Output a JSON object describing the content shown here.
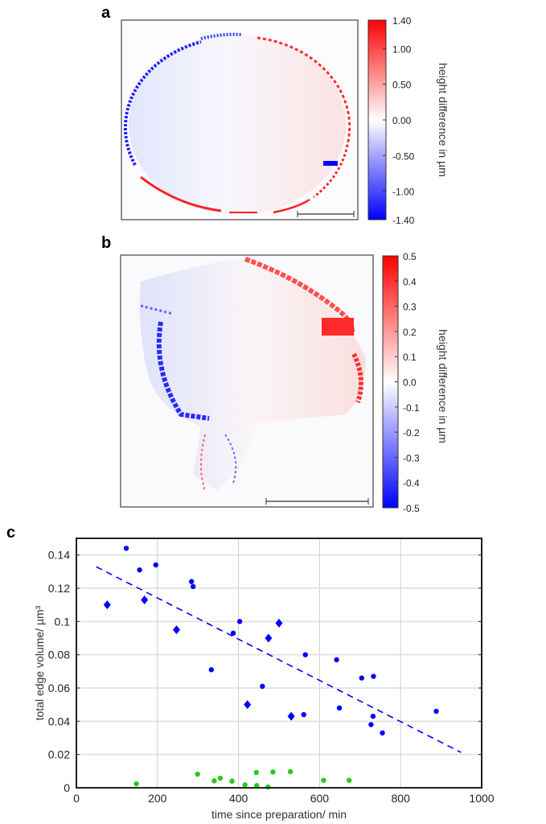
{
  "panels": {
    "a": {
      "letter": "a",
      "colorbar_label": "height difference in µm",
      "colorbar_ticks": [
        "1.40",
        "1.00",
        "0.50",
        "0.00",
        "-0.50",
        "-1.00",
        "-1.40"
      ],
      "colorbar_range": [
        -1.4,
        1.4
      ]
    },
    "b": {
      "letter": "b",
      "colorbar_label": "height difference in µm",
      "colorbar_ticks": [
        "0.5",
        "0.4",
        "0.3",
        "0.2",
        "0.1",
        "0.0",
        "-0.1",
        "-0.2",
        "-0.3",
        "-0.4",
        "-0.5"
      ],
      "colorbar_range": [
        -0.5,
        0.5
      ]
    },
    "c": {
      "letter": "c"
    }
  },
  "colors": {
    "blue": "#0000ff",
    "green": "#22cc22",
    "red": "#ff0000"
  },
  "chart_data": {
    "type": "scatter",
    "xlabel": "time since preparation/ min",
    "ylabel": "total edge volume/ µm³",
    "xlim": [
      0,
      1000
    ],
    "ylim": [
      0,
      0.15
    ],
    "xticks": [
      0,
      200,
      400,
      600,
      800,
      1000
    ],
    "yticks": [
      0,
      0.02,
      0.04,
      0.06,
      0.08,
      0.1,
      0.12,
      0.14
    ],
    "ytick_labels": [
      "0",
      "0.02",
      "0.04",
      "0.06",
      "0.08",
      "0.1",
      "0.12",
      "0.14"
    ],
    "grid": true,
    "series": [
      {
        "name": "blue circles",
        "marker": "circle",
        "color": "#0000ff",
        "points": [
          [
            123,
            0.144
          ],
          [
            156,
            0.131
          ],
          [
            196,
            0.134
          ],
          [
            284,
            0.124
          ],
          [
            288,
            0.121
          ],
          [
            403,
            0.1
          ],
          [
            387,
            0.093
          ],
          [
            333,
            0.071
          ],
          [
            459,
            0.061
          ],
          [
            565,
            0.08
          ],
          [
            561,
            0.044
          ],
          [
            642,
            0.077
          ],
          [
            649,
            0.048
          ],
          [
            704,
            0.066
          ],
          [
            733,
            0.067
          ],
          [
            732,
            0.043
          ],
          [
            727,
            0.038
          ],
          [
            755,
            0.033
          ],
          [
            888,
            0.046
          ]
        ]
      },
      {
        "name": "blue diamonds",
        "marker": "diamond",
        "color": "#0000ff",
        "points": [
          [
            76,
            0.11
          ],
          [
            168,
            0.113
          ],
          [
            247,
            0.095
          ],
          [
            500,
            0.099
          ],
          [
            474,
            0.09
          ],
          [
            422,
            0.05
          ],
          [
            530,
            0.043
          ]
        ]
      },
      {
        "name": "green circles",
        "marker": "circle",
        "color": "#22cc22",
        "points": [
          [
            148,
            0.0024
          ],
          [
            299,
            0.0082
          ],
          [
            340,
            0.0042
          ],
          [
            355,
            0.0058
          ],
          [
            384,
            0.004
          ],
          [
            416,
            0.0018
          ],
          [
            444,
            0.0092
          ],
          [
            445,
            0.0013
          ],
          [
            473,
            0.0005
          ],
          [
            485,
            0.0095
          ],
          [
            528,
            0.0097
          ],
          [
            610,
            0.0045
          ],
          [
            673,
            0.0045
          ]
        ]
      },
      {
        "name": "linear fit",
        "type": "line",
        "style": "dashed",
        "color": "#0000ff",
        "points": [
          [
            49,
            0.1329
          ],
          [
            949,
            0.0213
          ]
        ]
      }
    ]
  }
}
